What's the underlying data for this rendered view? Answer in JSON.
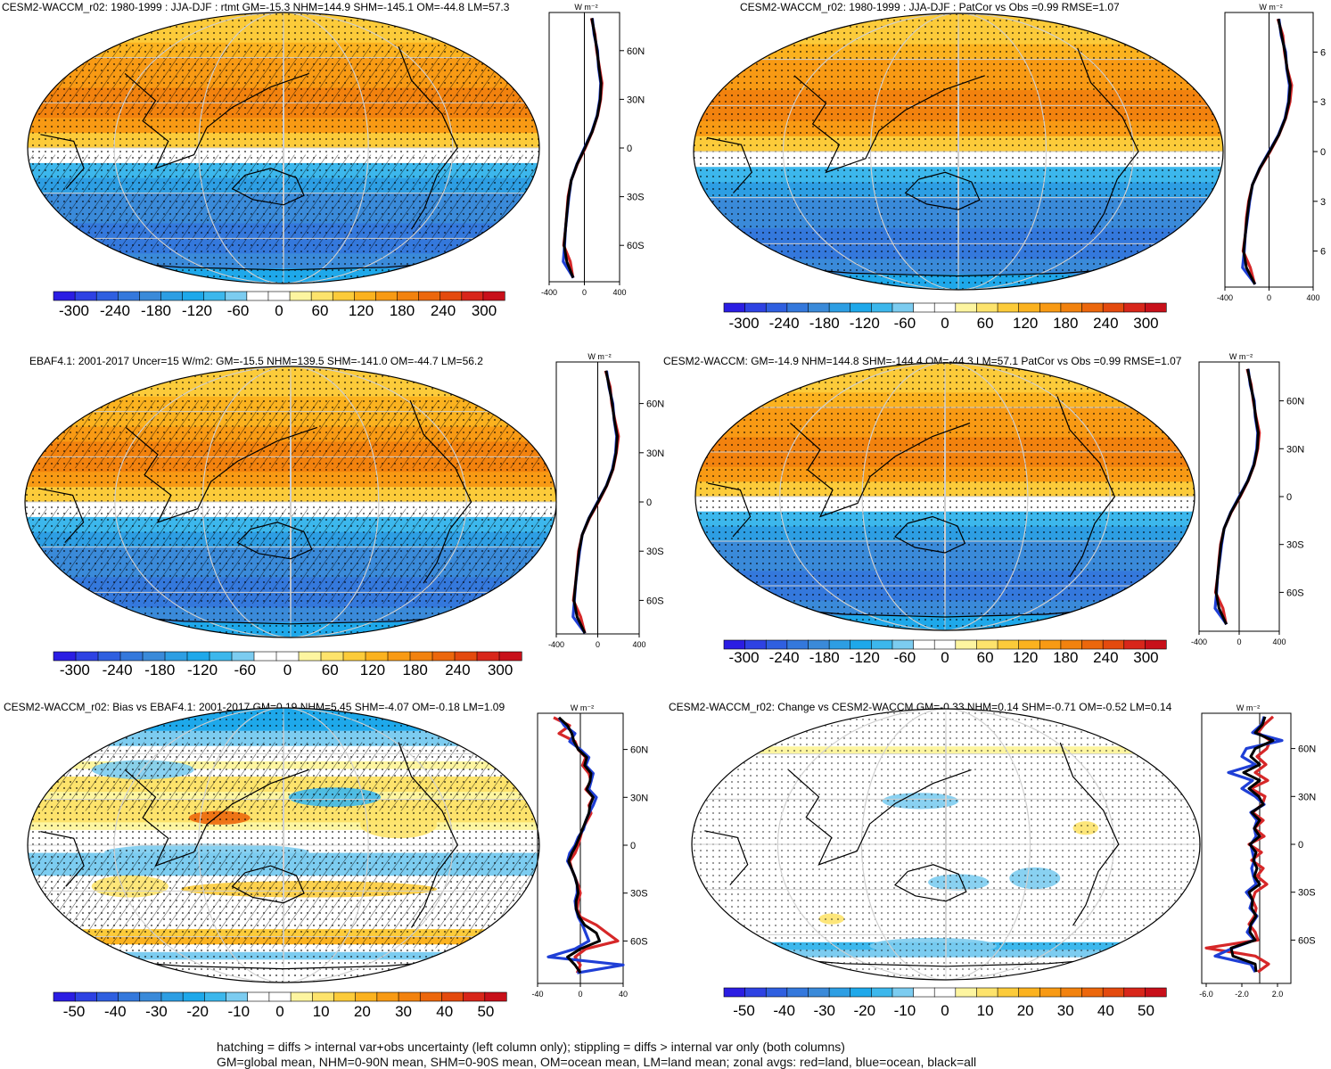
{
  "colors": {
    "neg": [
      "#2b1de3",
      "#2e42e3",
      "#2f5fe0",
      "#3478dc",
      "#3a8ad9",
      "#2d9ee3",
      "#1ea8ea",
      "#3cb7ec",
      "#7cccf0",
      "#ffffff"
    ],
    "pos": [
      "#ffffff",
      "#fdf5a0",
      "#fde36c",
      "#fccb3a",
      "#fbb21f",
      "#f89a14",
      "#f2820e",
      "#ec670c",
      "#e44a0e",
      "#d8261a",
      "#c8101a"
    ],
    "land_line": "#d62728",
    "ocean_line": "#1f3fd6",
    "all_line": "#000000"
  },
  "footer": {
    "line1": "hatching = diffs > internal var+obs uncertainty (left column only); stippling = diffs > internal var only (both columns)",
    "line2": "GM=global mean, NHM=0-90N mean, SHM=0-90S mean, OM=ocean mean, LM=land mean; zonal avgs: red=land, blue=ocean, black=all"
  },
  "chart_data": [
    {
      "type": "heatmap",
      "title": "CESM2-WACCM_r02: 1980-1999 : JJA-DJF : rtmt GM=-15.3 NHM=144.9 SHM=-145.1 OM=-44.8 LM=57.3",
      "colorbar_labels": [
        "-300",
        "-240",
        "-180",
        "-120",
        "-60",
        "0",
        "60",
        "120",
        "180",
        "240",
        "300"
      ],
      "zonal_xticks": [
        "-400",
        "0",
        "400"
      ],
      "zonal_yticks": [
        "60N",
        "30N",
        "0",
        "30S",
        "60S"
      ],
      "zonal_unit": "W m⁻²",
      "xlim": [
        -400,
        400
      ],
      "hatched": true,
      "lat": [
        80,
        70,
        60,
        50,
        40,
        30,
        20,
        10,
        0,
        -10,
        -20,
        -30,
        -40,
        -50,
        -60,
        -70,
        -80
      ],
      "series": [
        {
          "name": "land",
          "values": [
            80,
            120,
            140,
            170,
            200,
            185,
            150,
            90,
            10,
            -80,
            -150,
            -185,
            -200,
            -215,
            -235,
            -160,
            -130
          ]
        },
        {
          "name": "ocean",
          "values": [
            90,
            110,
            150,
            160,
            185,
            175,
            145,
            85,
            0,
            -85,
            -150,
            -175,
            -195,
            -215,
            -225,
            -240,
            -125
          ]
        },
        {
          "name": "all",
          "values": [
            85,
            115,
            145,
            165,
            190,
            180,
            148,
            88,
            5,
            -83,
            -150,
            -180,
            -198,
            -215,
            -230,
            -200,
            -128
          ]
        }
      ]
    },
    {
      "type": "heatmap",
      "title": "CESM2-WACCM_r02: 1980-1999 : JJA-DJF : PatCor vs Obs =0.99 RMSE=1.07",
      "colorbar_labels": [
        "-300",
        "-240",
        "-180",
        "-120",
        "-60",
        "0",
        "60",
        "120",
        "180",
        "240",
        "300"
      ],
      "zonal_xticks": [
        "-400",
        "0",
        "400"
      ],
      "zonal_yticks": [
        "6",
        "3",
        "0",
        "3",
        "6"
      ],
      "zonal_unit": "W m⁻²",
      "xlim": [
        -400,
        400
      ],
      "hatched": false,
      "lat": [
        80,
        70,
        60,
        50,
        40,
        30,
        20,
        10,
        0,
        -10,
        -20,
        -30,
        -40,
        -50,
        -60,
        -70,
        -80
      ],
      "series": [
        {
          "name": "land",
          "values": [
            80,
            125,
            140,
            165,
            205,
            190,
            150,
            90,
            10,
            -80,
            -150,
            -185,
            -205,
            -215,
            -235,
            -170,
            -130
          ]
        },
        {
          "name": "ocean",
          "values": [
            90,
            110,
            150,
            160,
            185,
            175,
            145,
            85,
            0,
            -85,
            -150,
            -175,
            -195,
            -215,
            -225,
            -240,
            -125
          ]
        },
        {
          "name": "all",
          "values": [
            85,
            115,
            145,
            163,
            192,
            180,
            148,
            88,
            5,
            -83,
            -150,
            -180,
            -200,
            -215,
            -230,
            -205,
            -128
          ]
        }
      ]
    },
    {
      "type": "heatmap",
      "title": "EBAF4.1: 2001-2017 Uncer=15 W/m2: GM=-15.5 NHM=139.5 SHM=-141.0 OM=-44.7 LM=56.2",
      "colorbar_labels": [
        "-300",
        "-240",
        "-180",
        "-120",
        "-60",
        "0",
        "60",
        "120",
        "180",
        "240",
        "300"
      ],
      "zonal_xticks": [
        "-400",
        "0",
        "400"
      ],
      "zonal_yticks": [
        "60N",
        "30N",
        "0",
        "30S",
        "60S"
      ],
      "zonal_unit": "W m⁻²",
      "xlim": [
        -400,
        400
      ],
      "hatched": true,
      "lat": [
        80,
        70,
        60,
        50,
        40,
        30,
        20,
        10,
        0,
        -10,
        -20,
        -30,
        -40,
        -50,
        -60,
        -70,
        -80
      ],
      "series": [
        {
          "name": "land",
          "values": [
            75,
            120,
            135,
            165,
            200,
            180,
            148,
            88,
            8,
            -80,
            -150,
            -185,
            -200,
            -215,
            -235,
            -165,
            -125
          ]
        },
        {
          "name": "ocean",
          "values": [
            85,
            108,
            145,
            158,
            182,
            172,
            142,
            84,
            -2,
            -86,
            -150,
            -175,
            -195,
            -213,
            -225,
            -238,
            -122
          ]
        },
        {
          "name": "all",
          "values": [
            80,
            112,
            140,
            160,
            188,
            176,
            145,
            86,
            3,
            -84,
            -150,
            -180,
            -198,
            -214,
            -230,
            -200,
            -124
          ]
        }
      ]
    },
    {
      "type": "heatmap",
      "title": "CESM2-WACCM: GM=-14.9 NHM=144.8 SHM=-144.4 OM=-44.3 LM=57.1 PatCor vs Obs =0.99 RMSE=1.07",
      "colorbar_labels": [
        "-300",
        "-240",
        "-180",
        "-120",
        "-60",
        "0",
        "60",
        "120",
        "180",
        "240",
        "300"
      ],
      "zonal_xticks": [
        "-400",
        "0",
        "400"
      ],
      "zonal_yticks": [
        "60N",
        "30N",
        "0",
        "30S",
        "60S"
      ],
      "zonal_unit": "W m⁻²",
      "xlim": [
        -400,
        400
      ],
      "hatched": false,
      "lat": [
        80,
        70,
        60,
        50,
        40,
        30,
        20,
        10,
        0,
        -10,
        -20,
        -30,
        -40,
        -50,
        -60,
        -70,
        -80
      ],
      "series": [
        {
          "name": "land",
          "values": [
            80,
            120,
            140,
            168,
            202,
            186,
            150,
            90,
            10,
            -80,
            -150,
            -186,
            -202,
            -215,
            -236,
            -162,
            -130
          ]
        },
        {
          "name": "ocean",
          "values": [
            90,
            110,
            150,
            160,
            185,
            175,
            145,
            85,
            0,
            -85,
            -150,
            -175,
            -195,
            -215,
            -225,
            -240,
            -125
          ]
        },
        {
          "name": "all",
          "values": [
            85,
            115,
            145,
            164,
            190,
            180,
            148,
            88,
            5,
            -83,
            -150,
            -181,
            -199,
            -215,
            -230,
            -201,
            -128
          ]
        }
      ]
    },
    {
      "type": "heatmap",
      "title": "CESM2-WACCM_r02: Bias vs EBAF4.1: 2001-2017 GM=0.19 NHM=5.45 SHM=-4.07 OM=-0.18 LM=1.09",
      "colorbar_labels": [
        "-50",
        "-40",
        "-30",
        "-20",
        "-10",
        "0",
        "10",
        "20",
        "30",
        "40",
        "50"
      ],
      "zonal_xticks": [
        "-40",
        "0",
        "40"
      ],
      "zonal_yticks": [
        "60N",
        "30N",
        "0",
        "30S",
        "60S"
      ],
      "zonal_unit": "W m⁻²",
      "xlim": [
        -40,
        40
      ],
      "hatched": true,
      "lat": [
        80,
        75,
        70,
        65,
        60,
        55,
        50,
        45,
        40,
        35,
        30,
        25,
        20,
        15,
        10,
        5,
        0,
        -5,
        -10,
        -15,
        -20,
        -25,
        -30,
        -35,
        -40,
        -45,
        -50,
        -55,
        -60,
        -65,
        -70,
        -75,
        -80
      ],
      "series": [
        {
          "name": "land",
          "values": [
            -25,
            -10,
            -20,
            -5,
            -2,
            5,
            2,
            8,
            10,
            5,
            12,
            8,
            10,
            6,
            2,
            0,
            -2,
            -5,
            -10,
            -8,
            -5,
            -2,
            0,
            -2,
            -3,
            0,
            15,
            25,
            35,
            5,
            -5,
            0,
            -3
          ]
        },
        {
          "name": "ocean",
          "values": [
            -20,
            -15,
            -5,
            -10,
            0,
            8,
            5,
            12,
            10,
            8,
            15,
            12,
            8,
            5,
            3,
            -2,
            -5,
            -10,
            -12,
            -8,
            -5,
            -3,
            -3,
            -5,
            -4,
            -2,
            2,
            5,
            8,
            -5,
            -30,
            40,
            -3
          ]
        },
        {
          "name": "all",
          "values": [
            -20,
            -12,
            -8,
            -6,
            -2,
            6,
            4,
            10,
            9,
            6,
            12,
            9,
            8,
            5,
            2,
            -1,
            -4,
            -8,
            -11,
            -8,
            -5,
            -3,
            -2,
            -4,
            -4,
            -1,
            4,
            15,
            18,
            0,
            -12,
            -5,
            0
          ]
        }
      ]
    },
    {
      "type": "heatmap",
      "title": "CESM2-WACCM_r02: Change vs CESM2-WACCM GM=-0.33 NHM=0.14 SHM=-0.71 OM=-0.52 LM=0.14",
      "colorbar_labels": [
        "-50",
        "-40",
        "-30",
        "-20",
        "-10",
        "0",
        "10",
        "20",
        "30",
        "40",
        "50"
      ],
      "zonal_xticks": [
        "-6.0",
        "-2.0",
        "2.0"
      ],
      "zonal_yticks": [
        "60N",
        "30N",
        "0",
        "30S",
        "60S"
      ],
      "zonal_unit": "W m⁻²",
      "xlim": [
        -6.5,
        3.5
      ],
      "hatched": false,
      "lat": [
        80,
        75,
        70,
        65,
        60,
        55,
        50,
        45,
        40,
        35,
        30,
        25,
        20,
        15,
        10,
        5,
        0,
        -5,
        -10,
        -15,
        -20,
        -25,
        -30,
        -35,
        -40,
        -45,
        -50,
        -55,
        -60,
        -65,
        -70,
        -75,
        -80
      ],
      "series": [
        {
          "name": "land",
          "values": [
            1.5,
            0.5,
            -0.2,
            1.2,
            0.8,
            -0.3,
            0.7,
            -0.5,
            0.9,
            -1.0,
            0.6,
            0.3,
            -0.8,
            0.4,
            -0.6,
            0.5,
            -1.2,
            0.2,
            -0.9,
            0.4,
            -0.3,
            0.8,
            -0.5,
            -0.8,
            -0.4,
            -0.6,
            -1.2,
            -0.5,
            -0.2,
            -6.0,
            -0.5,
            1.0,
            -0.2
          ]
        },
        {
          "name": "ocean",
          "values": [
            0.5,
            0.2,
            -0.8,
            2.5,
            -1.5,
            -2.0,
            -0.5,
            -3.5,
            -0.8,
            -2.0,
            -0.5,
            0.5,
            -1.0,
            -0.3,
            -0.6,
            -0.4,
            -1.0,
            -0.8,
            -0.6,
            -0.9,
            -0.7,
            -0.4,
            -1.5,
            -0.8,
            -1.1,
            -0.3,
            -0.9,
            -1.4,
            -0.6,
            -3.0,
            -5.0,
            -1.0,
            -0.5
          ]
        },
        {
          "name": "all",
          "values": [
            0.6,
            0.3,
            -0.5,
            1.5,
            -0.5,
            -1.0,
            0.0,
            -1.8,
            0.0,
            -1.2,
            -0.1,
            0.4,
            -0.9,
            0.0,
            -0.6,
            0.0,
            -1.1,
            -0.4,
            -0.7,
            -0.3,
            -0.6,
            0.0,
            -1.2,
            -0.8,
            -0.9,
            -0.4,
            -1.0,
            -1.1,
            -0.5,
            -3.2,
            -3.0,
            -0.5,
            -0.4
          ]
        }
      ]
    }
  ]
}
